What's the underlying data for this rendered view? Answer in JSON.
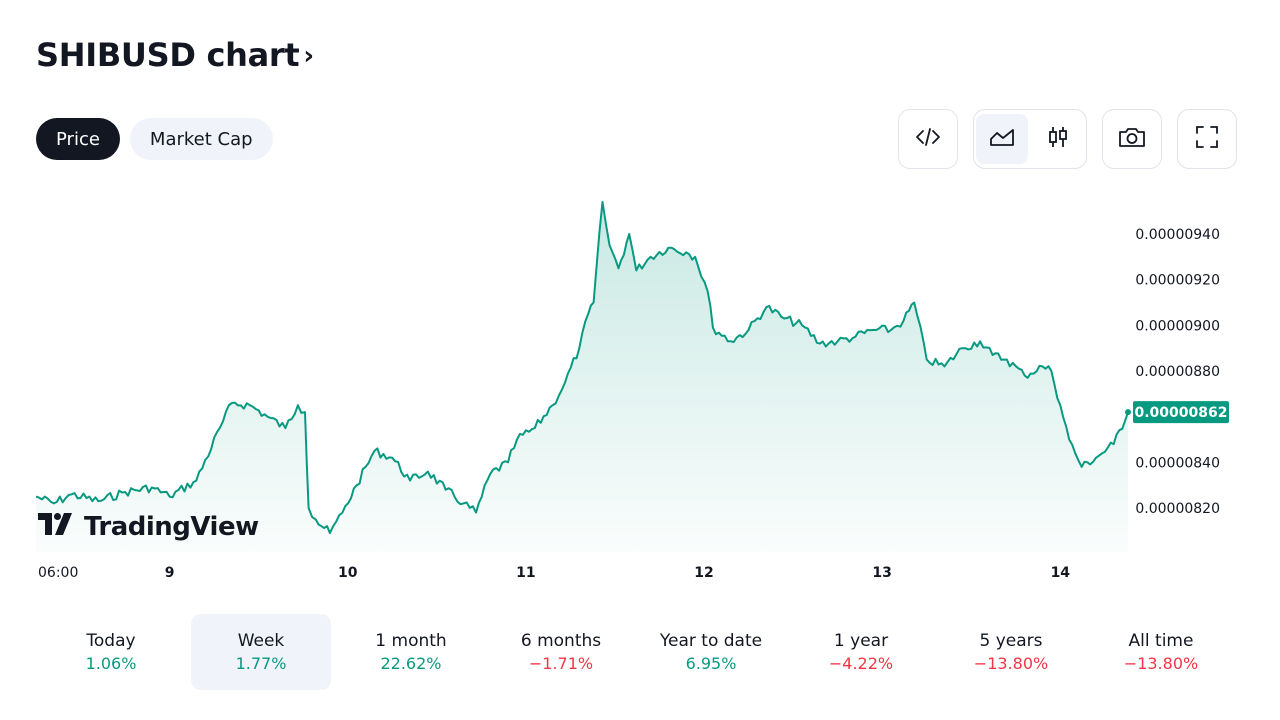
{
  "header": {
    "title": "SHIBUSD chart",
    "title_chevron": "›"
  },
  "tabs": [
    {
      "label": "Price",
      "active": true
    },
    {
      "label": "Market Cap",
      "active": false
    }
  ],
  "toolbar": {
    "embed_icon": "code-icon",
    "area_chart_icon": "area-chart-icon",
    "candles_icon": "candlestick-icon",
    "snapshot_icon": "camera-icon",
    "fullscreen_icon": "fullscreen-icon",
    "selected_chart_type": "area"
  },
  "chart_data": {
    "type": "area",
    "x_tick_labels": [
      "06:00",
      "9",
      "10",
      "11",
      "12",
      "13",
      "14"
    ],
    "y_tick_labels": [
      "0.00000940",
      "0.00000920",
      "0.00000900",
      "0.00000880",
      "0.00000840",
      "0.00000820"
    ],
    "ylim": [
      8e-06,
      9.6e-06
    ],
    "last_price_label": "0.00000862",
    "line_color": "#089981",
    "x_days": [
      8.25,
      8.35,
      8.45,
      8.6,
      8.75,
      8.9,
      9.0,
      9.15,
      9.3,
      9.35,
      9.45,
      9.55,
      9.65,
      9.72,
      9.76,
      9.78,
      9.82,
      9.9,
      9.97,
      10.05,
      10.15,
      10.25,
      10.35,
      10.45,
      10.55,
      10.65,
      10.72,
      10.8,
      10.9,
      10.95,
      11.05,
      11.15,
      11.22,
      11.3,
      11.35,
      11.38,
      11.43,
      11.47,
      11.52,
      11.58,
      11.62,
      11.7,
      11.8,
      11.9,
      11.95,
      12.02,
      12.05,
      12.15,
      12.25,
      12.35,
      12.45,
      12.55,
      12.65,
      12.75,
      12.85,
      12.95,
      13.05,
      13.12,
      13.18,
      13.25,
      13.35,
      13.45,
      13.55,
      13.62,
      13.7,
      13.8,
      13.9,
      13.95,
      14.0,
      14.05,
      14.12,
      14.2,
      14.3,
      14.38
    ],
    "y_values": [
      8.25e-06,
      8.22e-06,
      8.26e-06,
      8.23e-06,
      8.27e-06,
      8.29e-06,
      8.25e-06,
      8.32e-06,
      8.58e-06,
      8.66e-06,
      8.65e-06,
      8.6e-06,
      8.55e-06,
      8.65e-06,
      8.62e-06,
      8.2e-06,
      8.15e-06,
      8.09e-06,
      8.18e-06,
      8.3e-06,
      8.45e-06,
      8.42e-06,
      8.32e-06,
      8.36e-06,
      8.28e-06,
      8.22e-06,
      8.18e-06,
      8.35e-06,
      8.4e-06,
      8.5e-06,
      8.55e-06,
      8.65e-06,
      8.75e-06,
      8.9e-06,
      9.05e-06,
      9.1e-06,
      9.54e-06,
      9.35e-06,
      9.25e-06,
      9.4e-06,
      9.24e-06,
      9.3e-06,
      9.34e-06,
      9.32e-06,
      9.3e-06,
      9.15e-06,
      8.99e-06,
      8.93e-06,
      8.98e-06,
      9.08e-06,
      9.03e-06,
      9e-06,
      8.92e-06,
      8.93e-06,
      8.95e-06,
      8.98e-06,
      8.98e-06,
      9.02e-06,
      9.1e-06,
      8.85e-06,
      8.82e-06,
      8.9e-06,
      8.93e-06,
      8.87e-06,
      8.85e-06,
      8.78e-06,
      8.82e-06,
      8.8e-06,
      8.65e-06,
      8.5e-06,
      8.38e-06,
      8.42e-06,
      8.48e-06,
      8.62e-06
    ]
  },
  "watermark": {
    "text": "TradingView"
  },
  "periods": [
    {
      "label": "Today",
      "value": "1.06%",
      "trend": "up",
      "selected": false
    },
    {
      "label": "Week",
      "value": "1.77%",
      "trend": "up",
      "selected": true
    },
    {
      "label": "1 month",
      "value": "22.62%",
      "trend": "up",
      "selected": false
    },
    {
      "label": "6 months",
      "value": "−1.71%",
      "trend": "down",
      "selected": false
    },
    {
      "label": "Year to date",
      "value": "6.95%",
      "trend": "up",
      "selected": false
    },
    {
      "label": "1 year",
      "value": "−4.22%",
      "trend": "down",
      "selected": false
    },
    {
      "label": "5 years",
      "value": "−13.80%",
      "trend": "down",
      "selected": false
    },
    {
      "label": "All time",
      "value": "−13.80%",
      "trend": "down",
      "selected": false
    }
  ]
}
